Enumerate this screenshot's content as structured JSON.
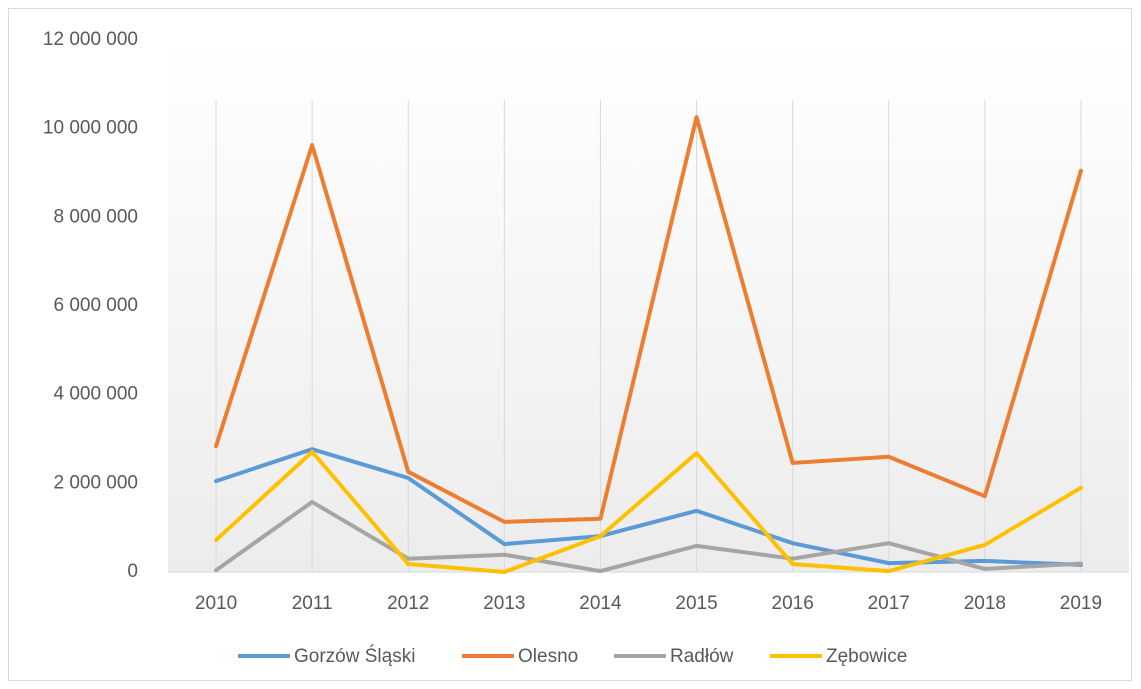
{
  "chart_data": {
    "type": "line",
    "categories": [
      "2010",
      "2011",
      "2012",
      "2013",
      "2014",
      "2015",
      "2016",
      "2017",
      "2018",
      "2019"
    ],
    "series": [
      {
        "name": "Gorzów Śląski",
        "color": "#5b9bd5",
        "values": [
          2050000,
          2770000,
          2120000,
          630000,
          810000,
          1380000,
          650000,
          200000,
          250000,
          160000
        ]
      },
      {
        "name": "Olesno",
        "color": "#ed7d31",
        "values": [
          2840000,
          9630000,
          2260000,
          1130000,
          1200000,
          10260000,
          2460000,
          2600000,
          1710000,
          9050000
        ]
      },
      {
        "name": "Radłów",
        "color": "#a5a5a5",
        "values": [
          40000,
          1580000,
          300000,
          390000,
          20000,
          590000,
          300000,
          650000,
          70000,
          190000
        ]
      },
      {
        "name": "Zębowice",
        "color": "#ffc000",
        "values": [
          720000,
          2710000,
          180000,
          0,
          810000,
          2680000,
          180000,
          20000,
          610000,
          1900000
        ]
      }
    ],
    "ylim": [
      0,
      12000000
    ],
    "yticks": [
      0,
      {
        "value": 2000000,
        "label": "2 000 000"
      },
      {
        "value": 4000000,
        "label": "4 000 000"
      },
      {
        "value": 6000000,
        "label": "6 000 000"
      },
      {
        "value": 8000000,
        "label": "8 000 000"
      },
      {
        "value": 10000000,
        "label": "10 000 000"
      },
      {
        "value": 12000000,
        "label": "12 000 000"
      }
    ],
    "grid": "vertical",
    "legend": "bottom"
  }
}
